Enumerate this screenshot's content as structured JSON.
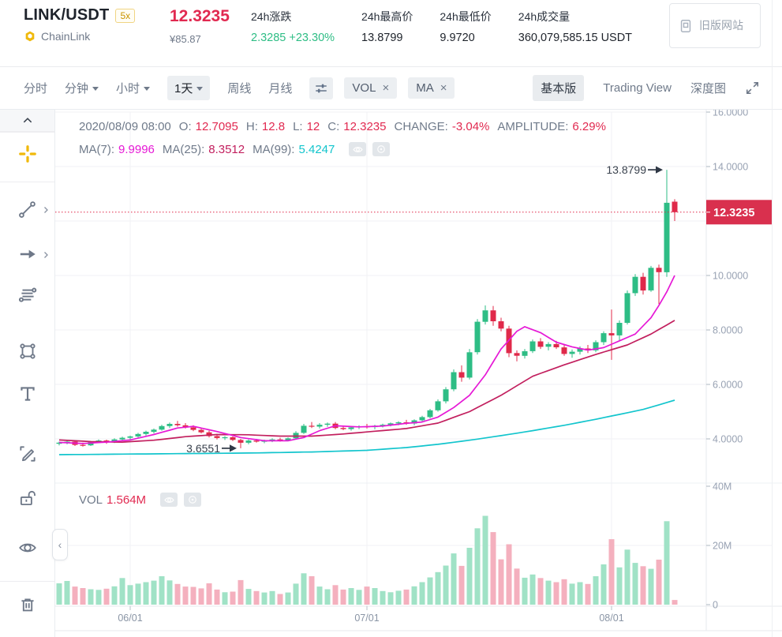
{
  "header": {
    "pair": "LINK/USDT",
    "leverage_badge": "5x",
    "coin_name": "ChainLink",
    "last_price": "12.3235",
    "fiat_price": "¥85.87",
    "stats": [
      {
        "label": "24h涨跌",
        "value": "2.3285 +23.30%",
        "direction": "up"
      },
      {
        "label": "24h最高价",
        "value": "13.8799",
        "direction": "flat"
      },
      {
        "label": "24h最低价",
        "value": "9.9720",
        "direction": "flat"
      },
      {
        "label": "24h成交量",
        "value": "360,079,585.15 USDT",
        "direction": "flat"
      }
    ],
    "legacy_label": "旧版网站"
  },
  "toolbar": {
    "intervals": [
      {
        "label": "分时",
        "dropdown": false,
        "active": false
      },
      {
        "label": "分钟",
        "dropdown": true,
        "active": false
      },
      {
        "label": "小时",
        "dropdown": true,
        "active": false
      },
      {
        "label": "1天",
        "dropdown": true,
        "active": true
      },
      {
        "label": "周线",
        "dropdown": false,
        "active": false
      },
      {
        "label": "月线",
        "dropdown": false,
        "active": false
      }
    ],
    "indicator_chips": [
      {
        "label": "VOL"
      },
      {
        "label": "MA"
      }
    ],
    "view_tabs": [
      {
        "label": "基本版",
        "active": true
      },
      {
        "label": "Trading View",
        "active": false
      },
      {
        "label": "深度图",
        "active": false
      }
    ]
  },
  "chart_info": {
    "datetime": "2020/08/09 08:00",
    "ohlc": [
      {
        "label": "O:",
        "value": "12.7095"
      },
      {
        "label": "H:",
        "value": "12.8"
      },
      {
        "label": "L:",
        "value": "12"
      },
      {
        "label": "C:",
        "value": "12.3235"
      },
      {
        "label": "CHANGE:",
        "value": "-3.04%"
      },
      {
        "label": "AMPLITUDE:",
        "value": "6.29%"
      }
    ],
    "ma": [
      {
        "label": "MA(7):",
        "value": "9.9996",
        "color": "#e619d6"
      },
      {
        "label": "MA(25):",
        "value": "8.3512",
        "color": "#c21f5e"
      },
      {
        "label": "MA(99):",
        "value": "5.4247",
        "color": "#13c5cd"
      }
    ],
    "vol_label": "VOL",
    "vol_value": "1.564M"
  },
  "sidebar": {
    "tools": [
      {
        "name": "crosshair",
        "active": true,
        "expandable": false
      },
      {
        "name": "trend-line",
        "active": false,
        "expandable": true
      },
      {
        "name": "arrow",
        "active": false,
        "expandable": true
      },
      {
        "name": "parallel-lines",
        "active": false,
        "expandable": false
      },
      {
        "name": "rectangle",
        "active": false,
        "expandable": false
      },
      {
        "name": "text",
        "active": false,
        "expandable": false
      },
      {
        "name": "brush",
        "active": false,
        "expandable": false
      },
      {
        "name": "unlock",
        "active": false,
        "expandable": false
      },
      {
        "name": "hide-drawings",
        "active": false,
        "expandable": false
      },
      {
        "name": "delete-drawings",
        "active": false,
        "expandable": false
      }
    ]
  },
  "colors": {
    "up": "#2ebd85",
    "down": "#e0294a",
    "vol_up": "#a0e2c6",
    "vol_down": "#f4b0be",
    "ma7": "#e619d6",
    "ma25": "#c21f5e",
    "ma99": "#13c5cd",
    "tag_bg": "#d9304e",
    "grid": "#f0f2f6",
    "axis_line": "#e7eaee",
    "axis_text": "#98a2b3",
    "annotation": "#39414d",
    "accent": "#f0b90b"
  },
  "chart_data": {
    "type": "candlestick+volume",
    "symbol": "LINK/USDT",
    "interval": "1d",
    "current_price": 12.3235,
    "price_axis": {
      "min": 3.4,
      "max": 16.2,
      "ticks": [
        {
          "label": "16.0000",
          "value": 16
        },
        {
          "label": "14.0000",
          "value": 14
        },
        {
          "label": "10.0000",
          "value": 10
        },
        {
          "label": "8.0000",
          "value": 8
        },
        {
          "label": "6.0000",
          "value": 6
        },
        {
          "label": "4.0000",
          "value": 4
        }
      ],
      "gridline_values": [
        16,
        14,
        12,
        10,
        8,
        6,
        4
      ]
    },
    "volume_axis": {
      "unit": "M",
      "ticks": [
        {
          "label": "40M",
          "value": 40
        },
        {
          "label": "20M",
          "value": 20
        },
        {
          "label": "0",
          "value": 0
        }
      ]
    },
    "x_ticks": [
      {
        "label": "06/01",
        "index": 9
      },
      {
        "label": "07/01",
        "index": 39
      },
      {
        "label": "08/01",
        "index": 70
      }
    ],
    "annotations": [
      {
        "text": "13.8799",
        "index": 77,
        "price": 13.8799
      },
      {
        "text": "3.6551",
        "index": 23,
        "price": 3.6551
      }
    ],
    "candles_format": [
      "open",
      "high",
      "low",
      "close",
      "volume_millions"
    ],
    "start_date": "2020-05-23",
    "end_date": "2020-08-09",
    "candles": [
      [
        3.82,
        3.9,
        3.76,
        3.86,
        7.2
      ],
      [
        3.86,
        3.94,
        3.8,
        3.9,
        8.0
      ],
      [
        3.9,
        3.93,
        3.74,
        3.78,
        6.1
      ],
      [
        3.78,
        3.86,
        3.72,
        3.76,
        5.6
      ],
      [
        3.76,
        3.92,
        3.74,
        3.88,
        5.2
      ],
      [
        3.88,
        3.98,
        3.84,
        3.94,
        5.0
      ],
      [
        3.94,
        3.97,
        3.82,
        3.87,
        5.4
      ],
      [
        3.87,
        4.02,
        3.85,
        3.98,
        6.2
      ],
      [
        3.98,
        4.08,
        3.92,
        4.04,
        9.0
      ],
      [
        4.04,
        4.12,
        3.96,
        4.09,
        6.6
      ],
      [
        4.09,
        4.22,
        4.05,
        4.18,
        7.1
      ],
      [
        4.18,
        4.3,
        4.12,
        4.26,
        7.6
      ],
      [
        4.26,
        4.38,
        4.2,
        4.34,
        8.1
      ],
      [
        4.34,
        4.52,
        4.3,
        4.47,
        9.6
      ],
      [
        4.47,
        4.6,
        4.4,
        4.55,
        8.2
      ],
      [
        4.55,
        4.66,
        4.45,
        4.5,
        7.0
      ],
      [
        4.5,
        4.58,
        4.38,
        4.42,
        6.1
      ],
      [
        4.42,
        4.5,
        4.28,
        4.33,
        6.0
      ],
      [
        4.33,
        4.4,
        4.2,
        4.24,
        5.5
      ],
      [
        4.24,
        4.3,
        4.05,
        4.1,
        7.2
      ],
      [
        4.1,
        4.18,
        3.98,
        4.03,
        5.1
      ],
      [
        4.03,
        4.1,
        3.96,
        4.06,
        4.2
      ],
      [
        4.06,
        4.09,
        3.92,
        3.96,
        4.4
      ],
      [
        3.96,
        4.0,
        3.6551,
        3.86,
        8.3
      ],
      [
        3.86,
        3.98,
        3.8,
        3.94,
        5.3
      ],
      [
        3.94,
        4.0,
        3.86,
        3.9,
        4.6
      ],
      [
        3.9,
        3.97,
        3.84,
        3.93,
        4.1
      ],
      [
        3.93,
        4.02,
        3.88,
        3.98,
        4.6
      ],
      [
        3.98,
        4.04,
        3.9,
        3.95,
        3.6
      ],
      [
        3.95,
        4.05,
        3.92,
        4.02,
        4.1
      ],
      [
        4.02,
        4.28,
        3.98,
        4.22,
        7.1
      ],
      [
        4.22,
        4.55,
        4.18,
        4.48,
        10.6
      ],
      [
        4.48,
        4.62,
        4.4,
        4.45,
        9.6
      ],
      [
        4.45,
        4.58,
        4.38,
        4.52,
        6.1
      ],
      [
        4.52,
        4.6,
        4.44,
        4.56,
        5.2
      ],
      [
        4.56,
        4.62,
        4.35,
        4.4,
        6.6
      ],
      [
        4.4,
        4.48,
        4.32,
        4.36,
        5.1
      ],
      [
        4.36,
        4.46,
        4.3,
        4.42,
        5.6
      ],
      [
        4.42,
        4.5,
        4.36,
        4.46,
        5.0
      ],
      [
        4.46,
        4.55,
        4.38,
        4.43,
        6.1
      ],
      [
        4.43,
        4.52,
        4.35,
        4.48,
        5.6
      ],
      [
        4.48,
        4.56,
        4.42,
        4.52,
        4.6
      ],
      [
        4.52,
        4.6,
        4.46,
        4.57,
        4.2
      ],
      [
        4.57,
        4.65,
        4.5,
        4.61,
        4.7
      ],
      [
        4.61,
        4.7,
        4.52,
        4.56,
        5.1
      ],
      [
        4.56,
        4.72,
        4.5,
        4.68,
        6.2
      ],
      [
        4.68,
        4.85,
        4.62,
        4.8,
        7.6
      ],
      [
        4.8,
        5.1,
        4.75,
        5.05,
        9.2
      ],
      [
        5.05,
        5.45,
        5.0,
        5.38,
        11.0
      ],
      [
        5.38,
        5.9,
        5.3,
        5.82,
        13.2
      ],
      [
        5.82,
        6.55,
        5.75,
        6.45,
        17.3
      ],
      [
        6.45,
        6.7,
        6.1,
        6.25,
        13.1
      ],
      [
        6.25,
        7.3,
        6.18,
        7.18,
        19.2
      ],
      [
        7.18,
        8.4,
        7.1,
        8.3,
        25.8
      ],
      [
        8.3,
        8.9,
        8.2,
        8.72,
        30.0
      ],
      [
        8.72,
        8.88,
        8.15,
        8.32,
        24.5
      ],
      [
        8.32,
        8.45,
        7.95,
        8.05,
        15.3
      ],
      [
        8.05,
        8.15,
        7.0,
        7.15,
        20.4
      ],
      [
        7.15,
        7.25,
        6.85,
        7.05,
        12.2
      ],
      [
        7.05,
        7.3,
        6.95,
        7.22,
        9.1
      ],
      [
        7.22,
        7.65,
        7.15,
        7.58,
        10.2
      ],
      [
        7.58,
        7.7,
        7.3,
        7.38,
        9.0
      ],
      [
        7.38,
        7.55,
        7.25,
        7.48,
        8.1
      ],
      [
        7.48,
        7.6,
        7.3,
        7.36,
        7.6
      ],
      [
        7.36,
        7.48,
        7.05,
        7.12,
        8.6
      ],
      [
        7.12,
        7.28,
        6.98,
        7.2,
        7.1
      ],
      [
        7.2,
        7.4,
        7.1,
        7.32,
        7.6
      ],
      [
        7.32,
        7.45,
        7.15,
        7.25,
        7.0
      ],
      [
        7.25,
        7.62,
        7.18,
        7.55,
        9.6
      ],
      [
        7.55,
        7.95,
        7.45,
        7.88,
        13.6
      ],
      [
        7.88,
        8.75,
        6.9,
        7.8,
        22.1
      ],
      [
        7.8,
        8.35,
        7.6,
        8.26,
        12.6
      ],
      [
        8.26,
        9.45,
        8.2,
        9.35,
        18.6
      ],
      [
        9.35,
        10.05,
        9.25,
        9.95,
        14.1
      ],
      [
        9.95,
        10.1,
        9.3,
        9.45,
        13.0
      ],
      [
        9.45,
        10.35,
        9.4,
        10.28,
        12.1
      ],
      [
        10.28,
        10.4,
        8.95,
        10.12,
        15.2
      ],
      [
        10.12,
        13.8799,
        9.95,
        12.67,
        28.2
      ],
      [
        12.7095,
        12.8,
        12.0,
        12.3235,
        1.564
      ]
    ],
    "ma7_anchors": [
      [
        0,
        3.87
      ],
      [
        3,
        3.83
      ],
      [
        6,
        3.88
      ],
      [
        9,
        3.96
      ],
      [
        12,
        4.16
      ],
      [
        15,
        4.4
      ],
      [
        17,
        4.46
      ],
      [
        20,
        4.27
      ],
      [
        23,
        4.05
      ],
      [
        26,
        3.93
      ],
      [
        29,
        3.93
      ],
      [
        31,
        4.05
      ],
      [
        33,
        4.3
      ],
      [
        35,
        4.48
      ],
      [
        38,
        4.44
      ],
      [
        41,
        4.47
      ],
      [
        44,
        4.57
      ],
      [
        46,
        4.62
      ],
      [
        48,
        4.8
      ],
      [
        50,
        5.15
      ],
      [
        52,
        5.6
      ],
      [
        54,
        6.35
      ],
      [
        56,
        7.3
      ],
      [
        58,
        7.95
      ],
      [
        59,
        8.12
      ],
      [
        61,
        7.9
      ],
      [
        63,
        7.55
      ],
      [
        65,
        7.38
      ],
      [
        67,
        7.26
      ],
      [
        69,
        7.35
      ],
      [
        71,
        7.6
      ],
      [
        73,
        7.85
      ],
      [
        75,
        8.45
      ],
      [
        76,
        8.9
      ],
      [
        77,
        9.4
      ],
      [
        78,
        10.0
      ]
    ],
    "ma25_anchors": [
      [
        0,
        3.96
      ],
      [
        4,
        3.9
      ],
      [
        8,
        3.88
      ],
      [
        12,
        3.95
      ],
      [
        16,
        4.08
      ],
      [
        20,
        4.16
      ],
      [
        24,
        4.15
      ],
      [
        28,
        4.1
      ],
      [
        32,
        4.1
      ],
      [
        36,
        4.18
      ],
      [
        40,
        4.28
      ],
      [
        44,
        4.38
      ],
      [
        48,
        4.58
      ],
      [
        52,
        5.0
      ],
      [
        56,
        5.6
      ],
      [
        60,
        6.3
      ],
      [
        64,
        6.72
      ],
      [
        68,
        7.1
      ],
      [
        72,
        7.45
      ],
      [
        75,
        7.85
      ],
      [
        78,
        8.35
      ]
    ],
    "ma99_anchors": [
      [
        0,
        3.42
      ],
      [
        8,
        3.44
      ],
      [
        16,
        3.46
      ],
      [
        24,
        3.48
      ],
      [
        32,
        3.52
      ],
      [
        39,
        3.58
      ],
      [
        44,
        3.68
      ],
      [
        48,
        3.8
      ],
      [
        52,
        3.95
      ],
      [
        56,
        4.12
      ],
      [
        60,
        4.3
      ],
      [
        64,
        4.5
      ],
      [
        68,
        4.72
      ],
      [
        71,
        4.9
      ],
      [
        74,
        5.08
      ],
      [
        78,
        5.42
      ]
    ]
  }
}
